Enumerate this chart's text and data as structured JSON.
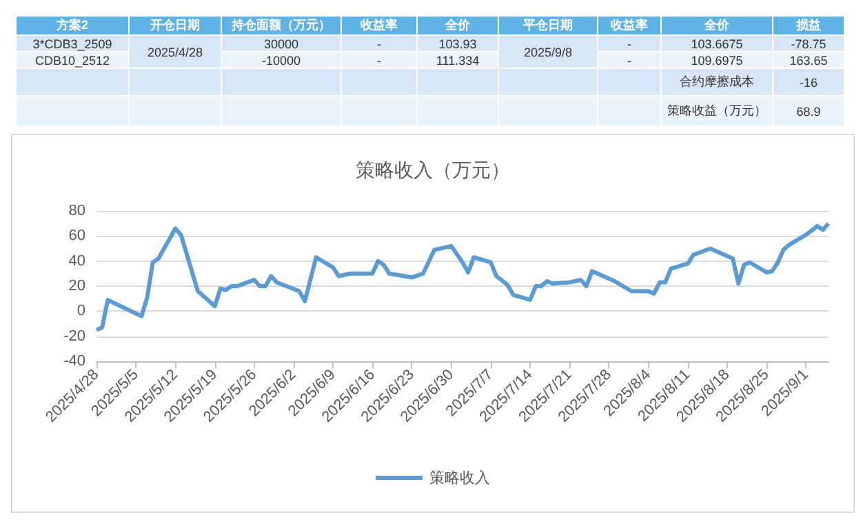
{
  "chart_data": [
    {
      "type": "other",
      "categories": [
        "方案2",
        "开仓日期",
        "持仓面额（万元）",
        "收益率",
        "全价",
        "平仓日期",
        "收益率",
        "全价",
        "损益"
      ],
      "cells": [
        [
          "3*CDB3_2509",
          "2025/4/28",
          "30000",
          "-",
          "103.93",
          "2025/9/8",
          "-",
          "103.6675",
          "-78.75"
        ],
        [
          "CDB10_2512",
          null,
          "-10000",
          "-",
          "111.334",
          null,
          "-",
          "109.6975",
          "163.65"
        ],
        [
          null,
          null,
          null,
          null,
          null,
          null,
          null,
          "合约摩擦成本",
          "-16"
        ],
        [
          null,
          null,
          null,
          null,
          null,
          null,
          null,
          "策略收益（万元）",
          "68.9"
        ]
      ]
    },
    {
      "type": "line",
      "title": "策略收入（万元）",
      "legend": "bottom",
      "grid": "y",
      "marker": "none",
      "line_style": "solid",
      "xlim": [
        "2025-04-28",
        "2025-09-05"
      ],
      "xticks": [
        {
          "value": "2025-04-28",
          "label": "2025/4/28"
        },
        {
          "value": "2025-05-05",
          "label": "2025/5/5"
        },
        {
          "value": "2025-05-12",
          "label": "2025/5/12"
        },
        {
          "value": "2025-05-19",
          "label": "2025/5/19"
        },
        {
          "value": "2025-05-26",
          "label": "2025/5/26"
        },
        {
          "value": "2025-06-02",
          "label": "2025/6/2"
        },
        {
          "value": "2025-06-09",
          "label": "2025/6/9"
        },
        {
          "value": "2025-06-16",
          "label": "2025/6/16"
        },
        {
          "value": "2025-06-23",
          "label": "2025/6/23"
        },
        {
          "value": "2025-06-30",
          "label": "2025/6/30"
        },
        {
          "value": "2025-07-07",
          "label": "2025/7/7"
        },
        {
          "value": "2025-07-14",
          "label": "2025/7/14"
        },
        {
          "value": "2025-07-21",
          "label": "2025/7/21"
        },
        {
          "value": "2025-07-28",
          "label": "2025/7/28"
        },
        {
          "value": "2025-08-04",
          "label": "2025/8/4"
        },
        {
          "value": "2025-08-11",
          "label": "2025/8/11"
        },
        {
          "value": "2025-08-18",
          "label": "2025/8/18"
        },
        {
          "value": "2025-08-25",
          "label": "2025/8/25"
        },
        {
          "value": "2025-09-01",
          "label": "2025/9/1"
        }
      ],
      "ylim": [
        -40,
        80
      ],
      "yticks": [
        -40,
        -20,
        0,
        20,
        40,
        60,
        80
      ],
      "x": [
        "2025-04-28",
        "2025-04-29",
        "2025-04-30",
        "2025-05-06",
        "2025-05-07",
        "2025-05-08",
        "2025-05-09",
        "2025-05-12",
        "2025-05-13",
        "2025-05-16",
        "2025-05-19",
        "2025-05-20",
        "2025-05-21",
        "2025-05-22",
        "2025-05-23",
        "2025-05-26",
        "2025-05-27",
        "2025-05-28",
        "2025-05-29",
        "2025-05-30",
        "2025-06-03",
        "2025-06-04",
        "2025-06-06",
        "2025-06-09",
        "2025-06-10",
        "2025-06-12",
        "2025-06-16",
        "2025-06-17",
        "2025-06-18",
        "2025-06-19",
        "2025-06-23",
        "2025-06-25",
        "2025-06-27",
        "2025-06-30",
        "2025-07-02",
        "2025-07-03",
        "2025-07-04",
        "2025-07-07",
        "2025-07-08",
        "2025-07-10",
        "2025-07-11",
        "2025-07-14",
        "2025-07-15",
        "2025-07-16",
        "2025-07-17",
        "2025-07-18",
        "2025-07-21",
        "2025-07-23",
        "2025-07-24",
        "2025-07-25",
        "2025-07-29",
        "2025-08-01",
        "2025-08-04",
        "2025-08-05",
        "2025-08-06",
        "2025-08-07",
        "2025-08-08",
        "2025-08-11",
        "2025-08-12",
        "2025-08-15",
        "2025-08-19",
        "2025-08-20",
        "2025-08-21",
        "2025-08-22",
        "2025-08-25",
        "2025-08-26",
        "2025-08-27",
        "2025-08-28",
        "2025-08-29",
        "2025-09-01",
        "2025-09-03",
        "2025-09-04",
        "2025-09-05"
      ],
      "series": [
        {
          "name": "策略收入",
          "color": "#5b9bd5",
          "values": [
            -15,
            -13,
            9,
            -4,
            11,
            39,
            42,
            66,
            61,
            16,
            4,
            18,
            17,
            20,
            20,
            25,
            20,
            20,
            28,
            23,
            16,
            8,
            43,
            35,
            28,
            30,
            30,
            40,
            37,
            30,
            27,
            30,
            49,
            52,
            39,
            31,
            43,
            39,
            28,
            21,
            13,
            9,
            20,
            20,
            24,
            22,
            23,
            25,
            20,
            32,
            24,
            16,
            16,
            14,
            23,
            23,
            34,
            38,
            45,
            50,
            42,
            22,
            37,
            39,
            31,
            32,
            39,
            49,
            53,
            61,
            68,
            65,
            70
          ]
        }
      ]
    }
  ]
}
